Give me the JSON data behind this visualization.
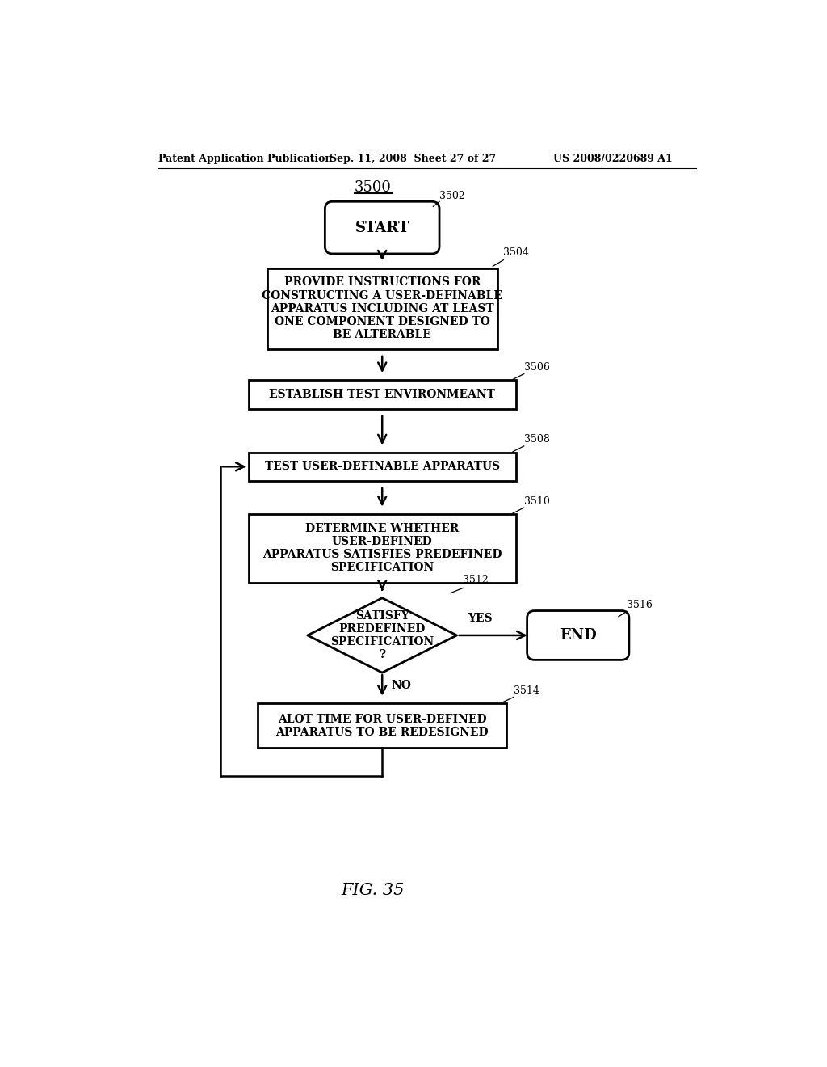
{
  "header_left": "Patent Application Publication",
  "header_mid": "Sep. 11, 2008  Sheet 27 of 27",
  "header_right": "US 2008/0220689 A1",
  "title": "3500",
  "fig_label": "FIG. 35",
  "bg_color": "#ffffff",
  "node_start_label": "START",
  "node_start_id": "3502",
  "node_box1_label": "PROVIDE INSTRUCTIONS FOR\nCONSTRUCTING A USER-DEFINABLE\nAPPARATUS INCLUDING AT LEAST\nONE COMPONENT DESIGNED TO\nBE ALTERABLE",
  "node_box1_id": "3504",
  "node_box2_label": "ESTABLISH TEST ENVIRONMEANT",
  "node_box2_id": "3506",
  "node_box3_label": "TEST USER-DEFINABLE APPARATUS",
  "node_box3_id": "3508",
  "node_box4_label": "DETERMINE WHETHER\nUSER-DEFINED\nAPPARATUS SATISFIES PREDEFINED\nSPECIFICATION",
  "node_box4_id": "3510",
  "node_diamond_label": "SATISFY\nPREDEFINED\nSPECIFICATION\n?",
  "node_diamond_id": "3512",
  "node_end_label": "END",
  "node_end_id": "3516",
  "node_box5_label": "ALOT TIME FOR USER-DEFINED\nAPPARATUS TO BE REDESIGNED",
  "node_box5_id": "3514",
  "yes_label": "YES",
  "no_label": "NO"
}
